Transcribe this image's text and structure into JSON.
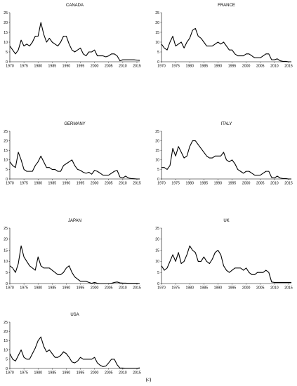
{
  "caption": "(c)",
  "chart_data": [
    {
      "type": "line",
      "title": "CANADA",
      "x_ticks": [
        1970,
        1975,
        1980,
        1985,
        1990,
        1995,
        2000,
        2005,
        2010,
        2015
      ],
      "y_ticks": [
        0,
        5,
        10,
        15,
        20,
        25
      ],
      "xlim": [
        1970,
        2016
      ],
      "ylim": [
        0,
        25
      ],
      "series": [
        {
          "x": [
            1970,
            1971,
            1972,
            1973,
            1974,
            1975,
            1976,
            1977,
            1978,
            1979,
            1980,
            1981,
            1982,
            1983,
            1984,
            1985,
            1986,
            1987,
            1988,
            1989,
            1990,
            1991,
            1992,
            1993,
            1994,
            1995,
            1996,
            1997,
            1998,
            1999,
            2000,
            2001,
            2002,
            2003,
            2004,
            2005,
            2006,
            2007,
            2008,
            2009,
            2010,
            2011,
            2012,
            2013,
            2014,
            2015,
            2016
          ],
          "y": [
            8,
            6,
            4,
            6,
            11,
            8,
            9,
            8,
            10,
            13,
            13,
            20,
            14,
            10,
            12,
            10,
            9,
            8,
            10,
            13,
            13,
            9,
            6,
            5,
            6,
            7,
            4,
            3,
            5,
            5,
            6,
            3,
            3,
            3,
            2.5,
            3,
            4,
            4,
            3,
            0.5,
            1,
            1,
            1,
            1,
            1,
            0.8,
            0.7
          ]
        }
      ]
    },
    {
      "type": "line",
      "title": "FRANCE",
      "x_ticks": [
        1970,
        1975,
        1980,
        1985,
        1990,
        1995,
        2000,
        2005,
        2010,
        2015
      ],
      "y_ticks": [
        0,
        5,
        10,
        15,
        20,
        25
      ],
      "xlim": [
        1970,
        2016
      ],
      "ylim": [
        0,
        25
      ],
      "series": [
        {
          "x": [
            1970,
            1971,
            1972,
            1973,
            1974,
            1975,
            1976,
            1977,
            1978,
            1979,
            1980,
            1981,
            1982,
            1983,
            1984,
            1985,
            1986,
            1987,
            1988,
            1989,
            1990,
            1991,
            1992,
            1993,
            1994,
            1995,
            1996,
            1997,
            1998,
            1999,
            2000,
            2001,
            2002,
            2003,
            2004,
            2005,
            2006,
            2007,
            2008,
            2009,
            2010,
            2011,
            2012,
            2013,
            2014,
            2015,
            2016
          ],
          "y": [
            9,
            7,
            6,
            10,
            13,
            8,
            9,
            10,
            7,
            10,
            12,
            16,
            17,
            13,
            12,
            10,
            8,
            8,
            8,
            9,
            10,
            9,
            10,
            8,
            6,
            6,
            4,
            3,
            3,
            3,
            4,
            4,
            3,
            2,
            2,
            2,
            3,
            4,
            4,
            1,
            1,
            1.5,
            0.5,
            0.2,
            0.2,
            0,
            -0.2
          ]
        }
      ]
    },
    {
      "type": "line",
      "title": "GERMANY",
      "x_ticks": [
        1970,
        1975,
        1980,
        1985,
        1990,
        1995,
        2000,
        2005,
        2010,
        2015
      ],
      "y_ticks": [
        0,
        5,
        10,
        15,
        20,
        25
      ],
      "xlim": [
        1970,
        2016
      ],
      "ylim": [
        0,
        25
      ],
      "series": [
        {
          "x": [
            1970,
            1971,
            1972,
            1973,
            1974,
            1975,
            1976,
            1977,
            1978,
            1979,
            1980,
            1981,
            1982,
            1983,
            1984,
            1985,
            1986,
            1987,
            1988,
            1989,
            1990,
            1991,
            1992,
            1993,
            1994,
            1995,
            1996,
            1997,
            1998,
            1999,
            2000,
            2001,
            2002,
            2003,
            2004,
            2005,
            2006,
            2007,
            2008,
            2009,
            2010,
            2011,
            2012,
            2013,
            2014,
            2015,
            2016
          ],
          "y": [
            9,
            7,
            6,
            14,
            10,
            5,
            4,
            4,
            4,
            7,
            9,
            12,
            9,
            6,
            6,
            5,
            5,
            4,
            4,
            7,
            8,
            9,
            10,
            7,
            5,
            4.5,
            3.5,
            3,
            3.5,
            2.5,
            4.5,
            4,
            3,
            2,
            2,
            2,
            3,
            4,
            4.5,
            1,
            0.5,
            1.5,
            0.5,
            0.2,
            0.1,
            0,
            -0.3
          ]
        }
      ]
    },
    {
      "type": "line",
      "title": "ITALY",
      "x_ticks": [
        1970,
        1975,
        1980,
        1985,
        1990,
        1995,
        2000,
        2005,
        2010,
        2015
      ],
      "y_ticks": [
        0,
        5,
        10,
        15,
        20,
        25
      ],
      "xlim": [
        1970,
        2016
      ],
      "ylim": [
        0,
        25
      ],
      "series": [
        {
          "x": [
            1970,
            1971,
            1972,
            1973,
            1974,
            1975,
            1976,
            1977,
            1978,
            1979,
            1980,
            1981,
            1982,
            1983,
            1984,
            1985,
            1986,
            1987,
            1988,
            1989,
            1990,
            1991,
            1992,
            1993,
            1994,
            1995,
            1996,
            1997,
            1998,
            1999,
            2000,
            2001,
            2002,
            2003,
            2004,
            2005,
            2006,
            2007,
            2008,
            2009,
            2010,
            2011,
            2012,
            2013,
            2014,
            2015,
            2016
          ],
          "y": [
            6,
            6,
            5,
            7,
            16,
            12,
            17,
            14,
            11,
            12,
            17,
            20,
            20,
            18,
            16,
            14,
            12,
            11,
            11,
            12,
            12,
            12,
            14,
            10,
            9,
            10,
            8,
            5,
            4,
            3,
            4,
            4,
            3,
            2,
            2,
            2,
            3,
            4,
            4,
            0.8,
            0.5,
            1.5,
            0.5,
            0.2,
            0.2,
            0,
            -0.2
          ]
        }
      ]
    },
    {
      "type": "line",
      "title": "JAPAN",
      "x_ticks": [
        1970,
        1975,
        1980,
        1985,
        1990,
        1995,
        2000,
        2005,
        2010,
        2015
      ],
      "y_ticks": [
        0,
        5,
        10,
        15,
        20,
        25
      ],
      "xlim": [
        1970,
        2016
      ],
      "ylim": [
        0,
        25
      ],
      "series": [
        {
          "x": [
            1970,
            1971,
            1972,
            1973,
            1974,
            1975,
            1976,
            1977,
            1978,
            1979,
            1980,
            1981,
            1982,
            1983,
            1984,
            1985,
            1986,
            1987,
            1988,
            1989,
            1990,
            1991,
            1992,
            1993,
            1994,
            1995,
            1996,
            1997,
            1998,
            1999,
            2000,
            2001,
            2002,
            2003,
            2004,
            2005,
            2006,
            2007,
            2008,
            2009,
            2010,
            2011,
            2012,
            2013,
            2014,
            2015,
            2016
          ],
          "y": [
            8,
            7,
            5,
            9,
            17,
            12,
            10,
            8,
            7,
            6,
            12,
            8,
            7,
            7,
            7,
            6,
            5,
            4,
            4,
            5,
            7,
            8,
            5,
            3,
            2,
            1,
            1,
            1,
            0.5,
            0.1,
            0.5,
            0.1,
            0,
            0,
            0,
            0,
            0.1,
            0.5,
            0.7,
            0.3,
            0.2,
            0.2,
            0.1,
            0.1,
            0.1,
            0.1,
            0
          ]
        }
      ]
    },
    {
      "type": "line",
      "title": "UK",
      "x_ticks": [
        1970,
        1975,
        1980,
        1985,
        1990,
        1995,
        2000,
        2005,
        2010,
        2015
      ],
      "y_ticks": [
        0,
        5,
        10,
        15,
        20,
        25
      ],
      "xlim": [
        1970,
        2016
      ],
      "ylim": [
        0,
        25
      ],
      "series": [
        {
          "x": [
            1970,
            1971,
            1972,
            1973,
            1974,
            1975,
            1976,
            1977,
            1978,
            1979,
            1980,
            1981,
            1982,
            1983,
            1984,
            1985,
            1986,
            1987,
            1988,
            1989,
            1990,
            1991,
            1992,
            1993,
            1994,
            1995,
            1996,
            1997,
            1998,
            1999,
            2000,
            2001,
            2002,
            2003,
            2004,
            2005,
            2006,
            2007,
            2008,
            2009,
            2010,
            2011,
            2012,
            2013,
            2014,
            2015,
            2016
          ],
          "y": [
            8,
            6,
            7,
            10,
            13,
            10,
            14,
            9,
            10,
            13,
            17,
            15,
            14,
            10,
            10,
            12,
            10,
            9,
            11,
            14,
            15,
            13,
            8,
            6,
            5,
            6,
            7,
            7,
            7,
            6,
            7,
            5,
            4,
            4,
            5,
            5,
            5,
            6,
            5,
            0.7,
            0.5,
            0.5,
            0.5,
            0.5,
            0.5,
            0.5,
            0.5
          ]
        }
      ]
    },
    {
      "type": "line",
      "title": "USA",
      "x_ticks": [
        1970,
        1975,
        1980,
        1985,
        1990,
        1995,
        2000,
        2005,
        2010,
        2015
      ],
      "y_ticks": [
        0,
        5,
        10,
        15,
        20,
        25
      ],
      "xlim": [
        1970,
        2016
      ],
      "ylim": [
        0,
        25
      ],
      "series": [
        {
          "x": [
            1970,
            1971,
            1972,
            1973,
            1974,
            1975,
            1976,
            1977,
            1978,
            1979,
            1980,
            1981,
            1982,
            1983,
            1984,
            1985,
            1986,
            1987,
            1988,
            1989,
            1990,
            1991,
            1992,
            1993,
            1994,
            1995,
            1996,
            1997,
            1998,
            1999,
            2000,
            2001,
            2002,
            2003,
            2004,
            2005,
            2006,
            2007,
            2008,
            2009,
            2010,
            2011,
            2012,
            2013,
            2014,
            2015,
            2016
          ],
          "y": [
            8,
            5,
            4,
            7,
            10,
            6,
            5,
            5,
            8,
            11,
            15,
            17,
            12,
            9,
            10,
            8,
            6,
            6,
            7,
            9,
            8,
            6,
            3.5,
            3,
            4,
            6,
            5,
            5,
            5,
            5,
            6,
            3,
            1.7,
            1,
            1.3,
            3,
            5,
            5,
            2,
            0.2,
            0.2,
            0.1,
            0.1,
            0.1,
            0.1,
            0.1,
            0.3
          ]
        }
      ]
    }
  ]
}
